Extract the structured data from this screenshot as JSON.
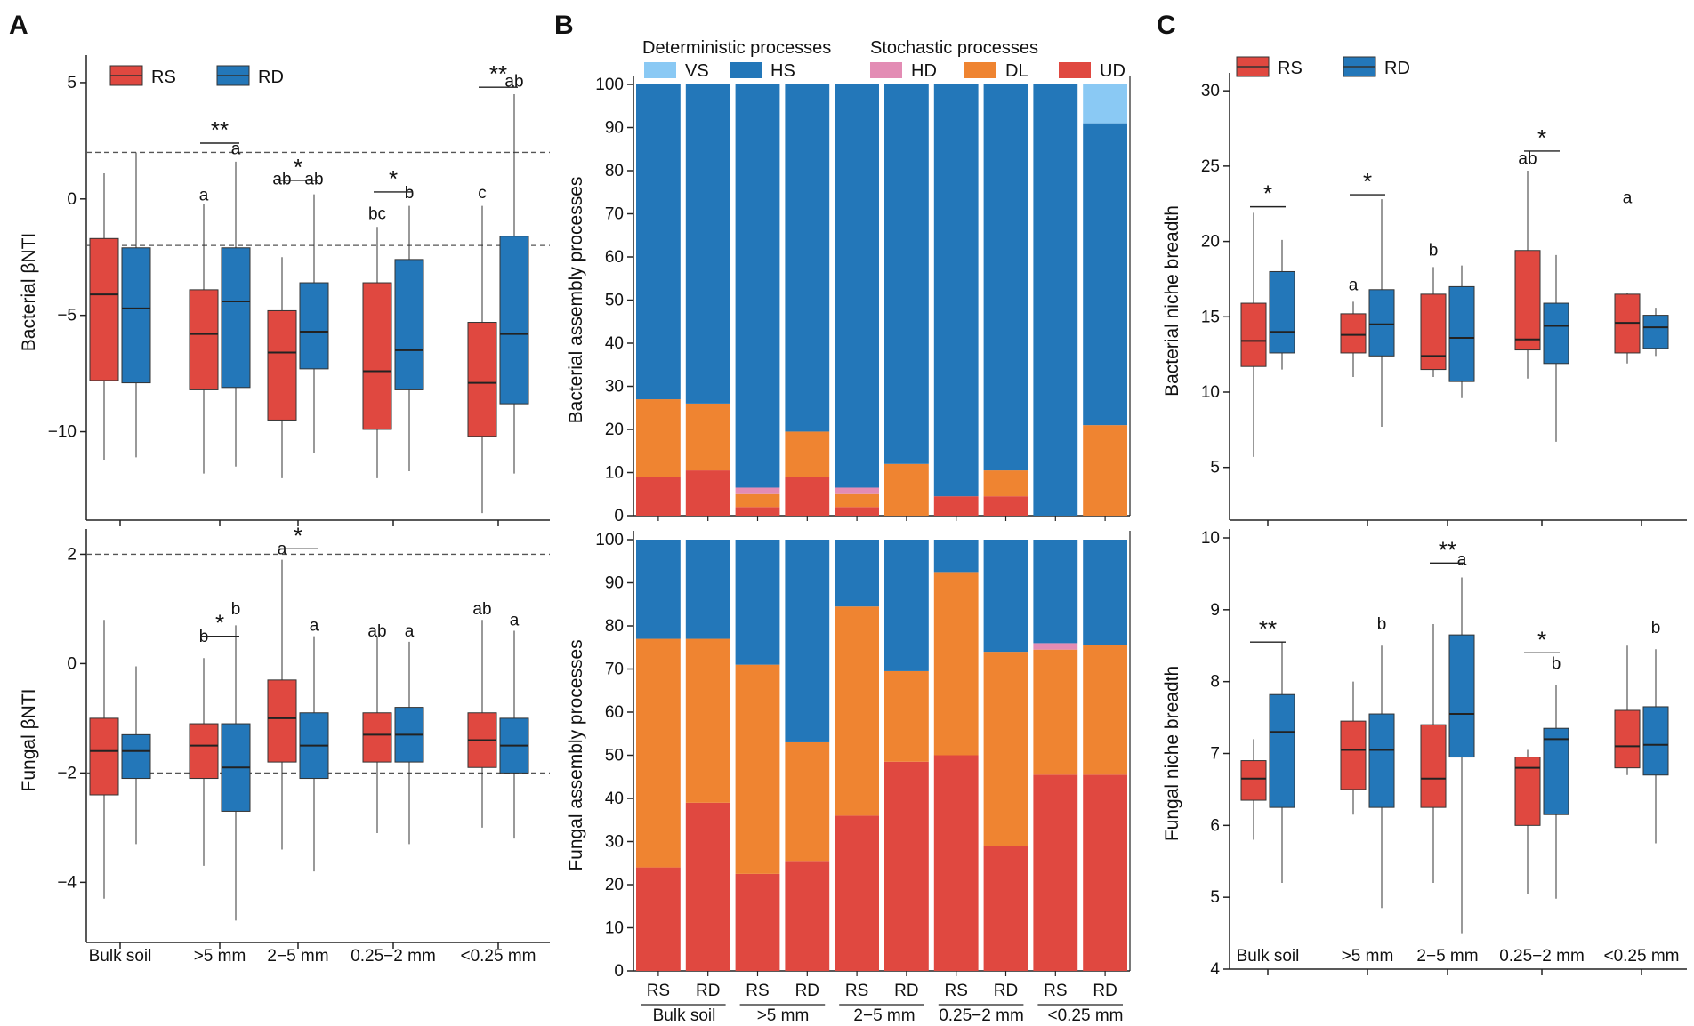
{
  "panels": {
    "A": "A",
    "B": "B",
    "C": "C"
  },
  "legend": {
    "groups": [
      {
        "name": "RS",
        "color": "#e04840"
      },
      {
        "name": "RD",
        "color": "#2377b9"
      }
    ],
    "det_title": "Deterministic processes",
    "stoch_title": "Stochastic processes",
    "processes": [
      {
        "code": "VS",
        "color": "#8ac9f4"
      },
      {
        "code": "HS",
        "color": "#2377b9"
      },
      {
        "code": "HD",
        "color": "#e38cb4"
      },
      {
        "code": "DL",
        "color": "#ef8431"
      },
      {
        "code": "UD",
        "color": "#e04840"
      }
    ]
  },
  "categories": [
    "Bulk soil",
    ">5 mm",
    "2−5 mm",
    "0.25−2 mm",
    "<0.25 mm"
  ],
  "chart_data": [
    {
      "id": "A-top",
      "type": "box",
      "ylabel": "Bacterial βNTI",
      "yticks": [
        5,
        0,
        -5,
        -10
      ],
      "ylim": [
        -13.8,
        5.8
      ],
      "hlines": [
        2,
        -2
      ],
      "boxes": [
        {
          "cat": 0,
          "group": "RS",
          "wl": -11.2,
          "q1": -7.8,
          "med": -4.1,
          "q3": -1.7,
          "wh": 1.1
        },
        {
          "cat": 0,
          "group": "RD",
          "wl": -11.1,
          "q1": -7.9,
          "med": -4.7,
          "q3": -2.1,
          "wh": 2.0
        },
        {
          "cat": 1,
          "group": "RS",
          "wl": -11.8,
          "q1": -8.2,
          "med": -5.8,
          "q3": -3.9,
          "wh": -0.2
        },
        {
          "cat": 1,
          "group": "RD",
          "wl": -11.5,
          "q1": -8.1,
          "med": -4.4,
          "q3": -2.1,
          "wh": 1.6
        },
        {
          "cat": 2,
          "group": "RS",
          "wl": -12.0,
          "q1": -9.5,
          "med": -6.6,
          "q3": -4.8,
          "wh": -2.5
        },
        {
          "cat": 2,
          "group": "RD",
          "wl": -10.9,
          "q1": -7.3,
          "med": -5.7,
          "q3": -3.6,
          "wh": 0.2
        },
        {
          "cat": 3,
          "group": "RS",
          "wl": -12.0,
          "q1": -9.9,
          "med": -7.4,
          "q3": -3.6,
          "wh": -1.2
        },
        {
          "cat": 3,
          "group": "RD",
          "wl": -11.7,
          "q1": -8.2,
          "med": -6.5,
          "q3": -2.6,
          "wh": -0.3
        },
        {
          "cat": 4,
          "group": "RS",
          "wl": -13.5,
          "q1": -10.2,
          "med": -7.9,
          "q3": -5.3,
          "wh": -0.3
        },
        {
          "cat": 4,
          "group": "RD",
          "wl": -11.8,
          "q1": -8.8,
          "med": -5.8,
          "q3": -1.6,
          "wh": 4.5
        }
      ],
      "letters": [
        {
          "cat": 1,
          "group": "RS",
          "text": "a",
          "y": -0.3
        },
        {
          "cat": 1,
          "group": "RD",
          "text": "a",
          "y": 1.7
        },
        {
          "cat": 2,
          "group": "RS",
          "text": "ab",
          "y": 0.4
        },
        {
          "cat": 2,
          "group": "RD",
          "text": "ab",
          "y": 0.4
        },
        {
          "cat": 3,
          "group": "RS",
          "text": "bc",
          "y": -1.1
        },
        {
          "cat": 3,
          "group": "RD",
          "text": "b",
          "y": -0.2
        },
        {
          "cat": 4,
          "group": "RS",
          "text": "c",
          "y": -0.2
        },
        {
          "cat": 4,
          "group": "RD",
          "text": "ab",
          "y": 4.6
        }
      ],
      "sig": [
        {
          "cat": 1,
          "text": "**",
          "y": 2.4
        },
        {
          "cat": 2,
          "text": "*",
          "y": 0.8
        },
        {
          "cat": 3,
          "text": "*",
          "y": 0.3
        },
        {
          "cat": 4,
          "text": "**",
          "y": 4.8
        }
      ]
    },
    {
      "id": "A-bottom",
      "type": "box",
      "ylabel": "Fungal βNTI",
      "yticks": [
        2,
        0,
        -2,
        -4
      ],
      "ylim": [
        -5.1,
        2.3
      ],
      "hlines": [
        2,
        -2
      ],
      "boxes": [
        {
          "cat": 0,
          "group": "RS",
          "wl": -4.3,
          "q1": -2.4,
          "med": -1.6,
          "q3": -1.0,
          "wh": 0.8
        },
        {
          "cat": 0,
          "group": "RD",
          "wl": -3.3,
          "q1": -2.1,
          "med": -1.6,
          "q3": -1.3,
          "wh": -0.05
        },
        {
          "cat": 1,
          "group": "RS",
          "wl": -3.7,
          "q1": -2.1,
          "med": -1.5,
          "q3": -1.1,
          "wh": 0.1
        },
        {
          "cat": 1,
          "group": "RD",
          "wl": -4.7,
          "q1": -2.7,
          "med": -1.9,
          "q3": -1.1,
          "wh": 0.7
        },
        {
          "cat": 2,
          "group": "RS",
          "wl": -3.4,
          "q1": -1.8,
          "med": -1.0,
          "q3": -0.3,
          "wh": 1.9
        },
        {
          "cat": 2,
          "group": "RD",
          "wl": -3.8,
          "q1": -2.1,
          "med": -1.5,
          "q3": -0.9,
          "wh": 0.5
        },
        {
          "cat": 3,
          "group": "RS",
          "wl": -3.1,
          "q1": -1.8,
          "med": -1.3,
          "q3": -0.9,
          "wh": 0.5
        },
        {
          "cat": 3,
          "group": "RD",
          "wl": -3.3,
          "q1": -1.8,
          "med": -1.3,
          "q3": -0.8,
          "wh": 0.4
        },
        {
          "cat": 4,
          "group": "RS",
          "wl": -3.0,
          "q1": -1.9,
          "med": -1.4,
          "q3": -0.9,
          "wh": 0.8
        },
        {
          "cat": 4,
          "group": "RD",
          "wl": -3.2,
          "q1": -2.0,
          "med": -1.5,
          "q3": -1.0,
          "wh": 0.6
        }
      ],
      "letters": [
        {
          "cat": 1,
          "group": "RS",
          "text": "b",
          "y": 0.3
        },
        {
          "cat": 1,
          "group": "RD",
          "text": "b",
          "y": 0.8
        },
        {
          "cat": 2,
          "group": "RS",
          "text": "a",
          "y": 1.9
        },
        {
          "cat": 2,
          "group": "RD",
          "text": "a",
          "y": 0.5
        },
        {
          "cat": 3,
          "group": "RS",
          "text": "ab",
          "y": 0.4
        },
        {
          "cat": 3,
          "group": "RD",
          "text": "a",
          "y": 0.4
        },
        {
          "cat": 4,
          "group": "RS",
          "text": "ab",
          "y": 0.8
        },
        {
          "cat": 4,
          "group": "RD",
          "text": "a",
          "y": 0.6
        }
      ],
      "sig": [
        {
          "cat": 1,
          "text": "*",
          "y": 0.5
        },
        {
          "cat": 2,
          "text": "*",
          "y": 2.1
        }
      ]
    },
    {
      "id": "B-top",
      "type": "stacked-bar",
      "ylabel": "Bacterial assembly processes",
      "yticks": [
        0,
        10,
        20,
        30,
        40,
        50,
        60,
        70,
        80,
        90,
        100
      ],
      "ylim": [
        0,
        100
      ],
      "bars": [
        {
          "label": "RS",
          "UD": 9,
          "DL": 18,
          "HD": 0,
          "HS": 73,
          "VS": 0
        },
        {
          "label": "RD",
          "UD": 10.5,
          "DL": 15.5,
          "HD": 0,
          "HS": 74,
          "VS": 0
        },
        {
          "label": "RS",
          "UD": 2,
          "DL": 3,
          "HD": 1.5,
          "HS": 93.5,
          "VS": 0
        },
        {
          "label": "RD",
          "UD": 9,
          "DL": 10.5,
          "HD": 0,
          "HS": 80.5,
          "VS": 0
        },
        {
          "label": "RS",
          "UD": 2,
          "DL": 3,
          "HD": 1.5,
          "HS": 93.5,
          "VS": 0
        },
        {
          "label": "RD",
          "UD": 0,
          "DL": 12,
          "HD": 0,
          "HS": 88,
          "VS": 0
        },
        {
          "label": "RS",
          "UD": 4.5,
          "DL": 0,
          "HD": 0,
          "HS": 95.5,
          "VS": 0
        },
        {
          "label": "RD",
          "UD": 4.5,
          "DL": 6,
          "HD": 0,
          "HS": 89.5,
          "VS": 0
        },
        {
          "label": "RS",
          "UD": 0,
          "DL": 0,
          "HD": 0,
          "HS": 100,
          "VS": 0
        },
        {
          "label": "RD",
          "UD": 0,
          "DL": 21,
          "HD": 0,
          "HS": 70,
          "VS": 9
        }
      ]
    },
    {
      "id": "B-bottom",
      "type": "stacked-bar",
      "ylabel": "Fungal assembly processes",
      "yticks": [
        0,
        10,
        20,
        30,
        40,
        50,
        60,
        70,
        80,
        90,
        100
      ],
      "ylim": [
        0,
        100
      ],
      "bars": [
        {
          "label": "RS",
          "UD": 24,
          "DL": 53,
          "HD": 0,
          "HS": 23,
          "VS": 0
        },
        {
          "label": "RD",
          "UD": 39,
          "DL": 38,
          "HD": 0,
          "HS": 23,
          "VS": 0
        },
        {
          "label": "RS",
          "UD": 22.5,
          "DL": 48.5,
          "HD": 0,
          "HS": 29,
          "VS": 0
        },
        {
          "label": "RD",
          "UD": 25.5,
          "DL": 27.5,
          "HD": 0,
          "HS": 47,
          "VS": 0
        },
        {
          "label": "RS",
          "UD": 36,
          "DL": 48.5,
          "HD": 0,
          "HS": 15.5,
          "VS": 0
        },
        {
          "label": "RD",
          "UD": 48.5,
          "DL": 21,
          "HD": 0,
          "HS": 30.5,
          "VS": 0
        },
        {
          "label": "RS",
          "UD": 50,
          "DL": 42.5,
          "HD": 0,
          "HS": 7.5,
          "VS": 0
        },
        {
          "label": "RD",
          "UD": 29,
          "DL": 45,
          "HD": 0,
          "HS": 26,
          "VS": 0
        },
        {
          "label": "RS",
          "UD": 45.5,
          "DL": 29,
          "HD": 1.5,
          "HS": 24,
          "VS": 0
        },
        {
          "label": "RD",
          "UD": 45.5,
          "DL": 30,
          "HD": 0,
          "HS": 24.5,
          "VS": 0
        }
      ]
    },
    {
      "id": "C-top",
      "type": "box",
      "ylabel": "Bacterial niche breadth",
      "yticks": [
        30,
        25,
        20,
        15,
        10,
        5
      ],
      "ylim": [
        1.5,
        30.6
      ],
      "hlines": [],
      "boxes": [
        {
          "cat": 0,
          "group": "RS",
          "wl": 5.7,
          "q1": 11.7,
          "med": 13.4,
          "q3": 15.9,
          "wh": 21.9
        },
        {
          "cat": 0,
          "group": "RD",
          "wl": 11.5,
          "q1": 12.6,
          "med": 14.0,
          "q3": 18.0,
          "wh": 20.1
        },
        {
          "cat": 1,
          "group": "RS",
          "wl": 11.0,
          "q1": 12.6,
          "med": 13.8,
          "q3": 15.2,
          "wh": 16.0
        },
        {
          "cat": 1,
          "group": "RD",
          "wl": 7.7,
          "q1": 12.4,
          "med": 14.5,
          "q3": 16.8,
          "wh": 22.8
        },
        {
          "cat": 2,
          "group": "RS",
          "wl": 11.0,
          "q1": 11.5,
          "med": 12.4,
          "q3": 16.5,
          "wh": 18.3
        },
        {
          "cat": 2,
          "group": "RD",
          "wl": 9.6,
          "q1": 10.7,
          "med": 13.6,
          "q3": 17.0,
          "wh": 18.4
        },
        {
          "cat": 3,
          "group": "RS",
          "wl": 10.9,
          "q1": 12.8,
          "med": 13.5,
          "q3": 19.4,
          "wh": 24.7
        },
        {
          "cat": 3,
          "group": "RD",
          "wl": 6.7,
          "q1": 11.9,
          "med": 14.4,
          "q3": 15.9,
          "wh": 19.1
        },
        {
          "cat": 4,
          "group": "RS",
          "wl": 11.9,
          "q1": 12.6,
          "med": 14.6,
          "q3": 16.5,
          "wh": 16.6
        },
        {
          "cat": 4,
          "group": "RD",
          "wl": 12.4,
          "q1": 12.9,
          "med": 14.3,
          "q3": 15.1,
          "wh": 15.6
        }
      ],
      "letters": [
        {
          "cat": 1,
          "group": "RS",
          "text": "a",
          "y": 16.4
        },
        {
          "cat": 2,
          "group": "RS",
          "text": "b",
          "y": 18.7
        },
        {
          "cat": 3,
          "group": "RS",
          "text": "ab",
          "y": 24.8
        },
        {
          "cat": 4,
          "group": "RS",
          "text": "a",
          "y": 22.2
        }
      ],
      "sig": [
        {
          "cat": 0,
          "text": "*",
          "y": 22.3
        },
        {
          "cat": 1,
          "text": "*",
          "y": 23.1
        },
        {
          "cat": 3,
          "text": "*",
          "y": 26.0
        }
      ]
    },
    {
      "id": "C-bottom",
      "type": "box",
      "ylabel": "Fungal niche breadth",
      "yticks": [
        10,
        9,
        8,
        7,
        6,
        5,
        4
      ],
      "ylim": [
        4,
        10
      ],
      "hlines": [],
      "boxes": [
        {
          "cat": 0,
          "group": "RS",
          "wl": 5.8,
          "q1": 6.35,
          "med": 6.65,
          "q3": 6.9,
          "wh": 7.2
        },
        {
          "cat": 0,
          "group": "RD",
          "wl": 5.2,
          "q1": 6.25,
          "med": 7.3,
          "q3": 7.82,
          "wh": 8.55
        },
        {
          "cat": 1,
          "group": "RS",
          "wl": 6.15,
          "q1": 6.5,
          "med": 7.05,
          "q3": 7.45,
          "wh": 8.0
        },
        {
          "cat": 1,
          "group": "RD",
          "wl": 4.85,
          "q1": 6.25,
          "med": 7.05,
          "q3": 7.55,
          "wh": 8.5
        },
        {
          "cat": 2,
          "group": "RS",
          "wl": 5.2,
          "q1": 6.25,
          "med": 6.65,
          "q3": 7.4,
          "wh": 8.8
        },
        {
          "cat": 2,
          "group": "RD",
          "wl": 4.5,
          "q1": 6.95,
          "med": 7.55,
          "q3": 8.65,
          "wh": 9.45
        },
        {
          "cat": 3,
          "group": "RS",
          "wl": 5.05,
          "q1": 6.0,
          "med": 6.8,
          "q3": 6.95,
          "wh": 7.05
        },
        {
          "cat": 3,
          "group": "RD",
          "wl": 4.98,
          "q1": 6.15,
          "med": 7.2,
          "q3": 7.35,
          "wh": 7.95
        },
        {
          "cat": 4,
          "group": "RS",
          "wl": 6.7,
          "q1": 6.8,
          "med": 7.1,
          "q3": 7.6,
          "wh": 8.5
        },
        {
          "cat": 4,
          "group": "RD",
          "wl": 5.75,
          "q1": 6.7,
          "med": 7.12,
          "q3": 7.65,
          "wh": 8.45
        }
      ],
      "letters": [
        {
          "cat": 1,
          "group": "RD",
          "text": "b",
          "y": 8.65
        },
        {
          "cat": 2,
          "group": "RD",
          "text": "a",
          "y": 9.55
        },
        {
          "cat": 3,
          "group": "RD",
          "text": "b",
          "y": 8.1
        },
        {
          "cat": 4,
          "group": "RD",
          "text": "b",
          "y": 8.6
        }
      ],
      "sig": [
        {
          "cat": 0,
          "text": "**",
          "y": 8.55
        },
        {
          "cat": 2,
          "text": "**",
          "y": 9.65
        },
        {
          "cat": 3,
          "text": "*",
          "y": 8.4
        }
      ]
    }
  ]
}
